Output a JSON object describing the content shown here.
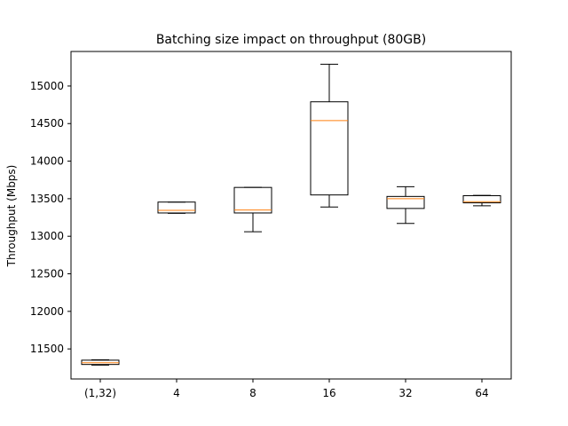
{
  "chart_data": {
    "type": "box",
    "title": "Batching size impact on throughput (80GB)",
    "xlabel": "",
    "ylabel": "Throughput (Mbps)",
    "ylim": [
      11100,
      15460
    ],
    "yticks": [
      11500,
      12000,
      12500,
      13000,
      13500,
      14000,
      14500,
      15000
    ],
    "grid": false,
    "colors": {
      "box": "#000000",
      "median": "#ff7f0e"
    },
    "categories": [
      "(1,32)",
      "4",
      "8",
      "16",
      "32",
      "64"
    ],
    "boxes": [
      {
        "category": "(1,32)",
        "whisker_low": 11285,
        "q1": 11293,
        "median": 11315,
        "q3": 11350,
        "whisker_high": 11355
      },
      {
        "category": "4",
        "whisker_low": 13305,
        "q1": 13310,
        "median": 13345,
        "q3": 13455,
        "whisker_high": 13455
      },
      {
        "category": "8",
        "whisker_low": 13060,
        "q1": 13310,
        "median": 13350,
        "q3": 13650,
        "whisker_high": 13650
      },
      {
        "category": "16",
        "whisker_low": 13390,
        "q1": 13550,
        "median": 14540,
        "q3": 14790,
        "whisker_high": 15290
      },
      {
        "category": "32",
        "whisker_low": 13170,
        "q1": 13370,
        "median": 13500,
        "q3": 13530,
        "whisker_high": 13660
      },
      {
        "category": "64",
        "whisker_low": 13405,
        "q1": 13445,
        "median": 13460,
        "q3": 13540,
        "whisker_high": 13545
      }
    ]
  }
}
